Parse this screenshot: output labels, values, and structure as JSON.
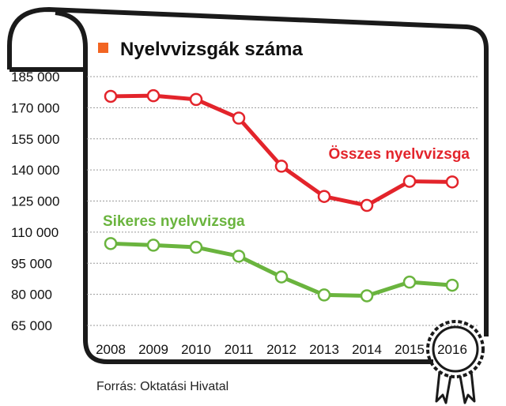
{
  "chart_data": {
    "type": "line",
    "title": "Nyelvvizsgák száma",
    "source": "Forrás: Oktatási Hivatal",
    "categories": [
      "2008",
      "2009",
      "2010",
      "2011",
      "2012",
      "2013",
      "2014",
      "2015",
      "2016"
    ],
    "y_ticks": [
      "185 000",
      "170 000",
      "155 000",
      "140 000",
      "125 000",
      "110 000",
      "95 000",
      "80 000",
      "65 000"
    ],
    "ylim": [
      65000,
      185000
    ],
    "grid": true,
    "series": [
      {
        "name": "Összes nyelvvizsga",
        "color": "#e3242b",
        "values": [
          175500,
          175800,
          174000,
          165000,
          141800,
          127200,
          122900,
          134500,
          134200
        ]
      },
      {
        "name": "Sikeres nyelvvizsga",
        "color": "#6ab43e",
        "values": [
          104500,
          103700,
          102700,
          98400,
          88400,
          79700,
          79300,
          85900,
          84400
        ]
      }
    ],
    "colors": {
      "title_square": "#f26522",
      "frame": "#1a1a1a",
      "grid": "#9a9a9a"
    }
  }
}
